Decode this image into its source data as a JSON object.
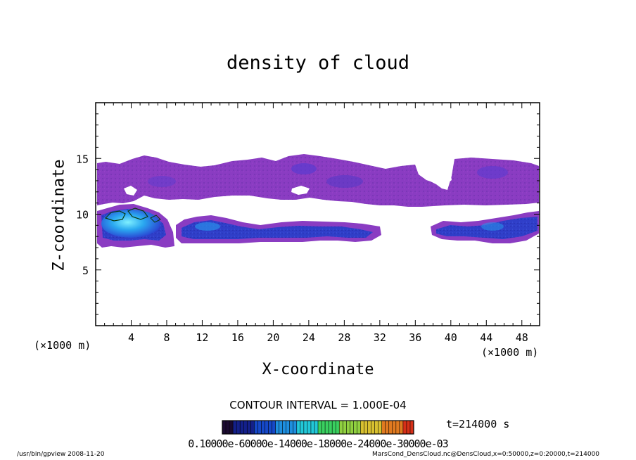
{
  "chart_data": {
    "type": "heatmap",
    "title": "density of cloud",
    "xlabel": "X-coordinate",
    "ylabel": "Z-coordinate",
    "x_unit_left": "(×1000 m)",
    "x_unit_right": "(×1000 m)",
    "xlim": [
      0,
      50
    ],
    "ylim": [
      0,
      20
    ],
    "x_ticks": [
      4,
      8,
      12,
      16,
      20,
      24,
      28,
      32,
      36,
      40,
      44,
      48
    ],
    "y_ticks": [
      5,
      10,
      15
    ],
    "grid": false,
    "contour_interval": "CONTOUR INTERVAL = 1.000E-04",
    "time_label": "t=214000 s",
    "colorbar_levels_text": "0.10000e-60000e-14000e-18000e-24000e-30000e-03",
    "colorbar_colors": [
      "#1a0a30",
      "#14208a",
      "#1648c8",
      "#1e8fe0",
      "#22c8d8",
      "#3ad060",
      "#90d040",
      "#d8c030",
      "#e07a20",
      "#d63018"
    ],
    "upper_layer": {
      "z_range_approx": [
        11,
        15
      ],
      "x_range_approx": [
        0,
        50
      ],
      "dominant_color": "#8c3dc0",
      "note": "purple band (low density)"
    },
    "lower_layer": {
      "z_range_approx": [
        7.5,
        10.5
      ],
      "x_range_approx": [
        0,
        50
      ],
      "dominant_color": "#2f3ec8",
      "max_region_x_approx": [
        1,
        8
      ],
      "max_region_color": "#3cd0f0"
    }
  },
  "footer": {
    "program": "/usr/bin/gpview   2008-11-20",
    "source": "MarsCond_DensCloud.nc@DensCloud,x=0:50000,z=0:20000,t=214000"
  },
  "colors": {
    "frame": "#000000",
    "background": "#ffffff"
  }
}
